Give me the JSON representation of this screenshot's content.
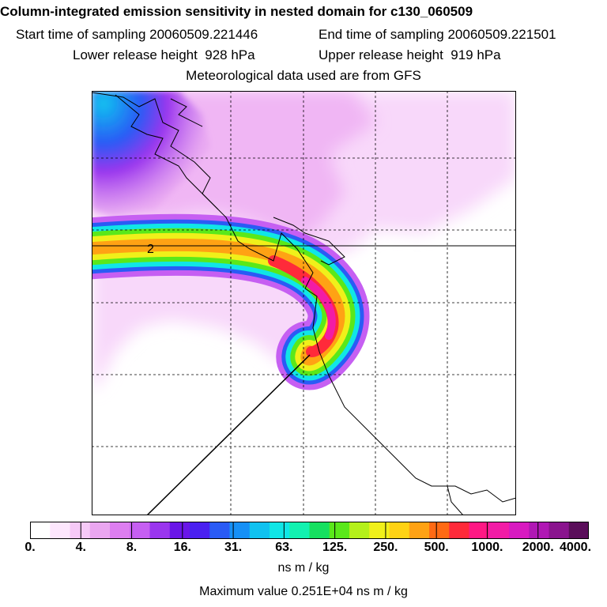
{
  "title": "Column-integrated emission sensitivity in nested domain for c130_060509",
  "start_label": "Start time of sampling 20060509.221446",
  "end_label": "End time of sampling 20060509.221501",
  "lower_label": "Lower release height  928 hPa",
  "upper_label": "Upper release height  919 hPa",
  "met_label": "Meteorological data used are from GFS",
  "map_marker_label": "2",
  "colorbar": {
    "ticks": [
      "0.",
      "4.",
      "8.",
      "16.",
      "31.",
      "63.",
      "125.",
      "250.",
      "500.",
      "1000.",
      "2000.",
      "4000."
    ],
    "colors": [
      "#ffffff",
      "#fde6fd",
      "#f6c9f7",
      "#eaa6f0",
      "#dd7ef0",
      "#c65ff2",
      "#9a36ee",
      "#6a16e8",
      "#4a20f0",
      "#2a5bf5",
      "#1690f6",
      "#10c2f0",
      "#10e6e6",
      "#12f2b0",
      "#16e060",
      "#5ae81a",
      "#b4f01a",
      "#f0f01a",
      "#ffd214",
      "#ffa214",
      "#ff6a14",
      "#ff2a3a",
      "#ff1884",
      "#f21ca6",
      "#d81ac0",
      "#b018b4",
      "#8a148e",
      "#5a0e5a"
    ],
    "unit": "ns m / kg"
  },
  "max_value_label": "Maximum value  0.251E+04 ns m / kg"
}
